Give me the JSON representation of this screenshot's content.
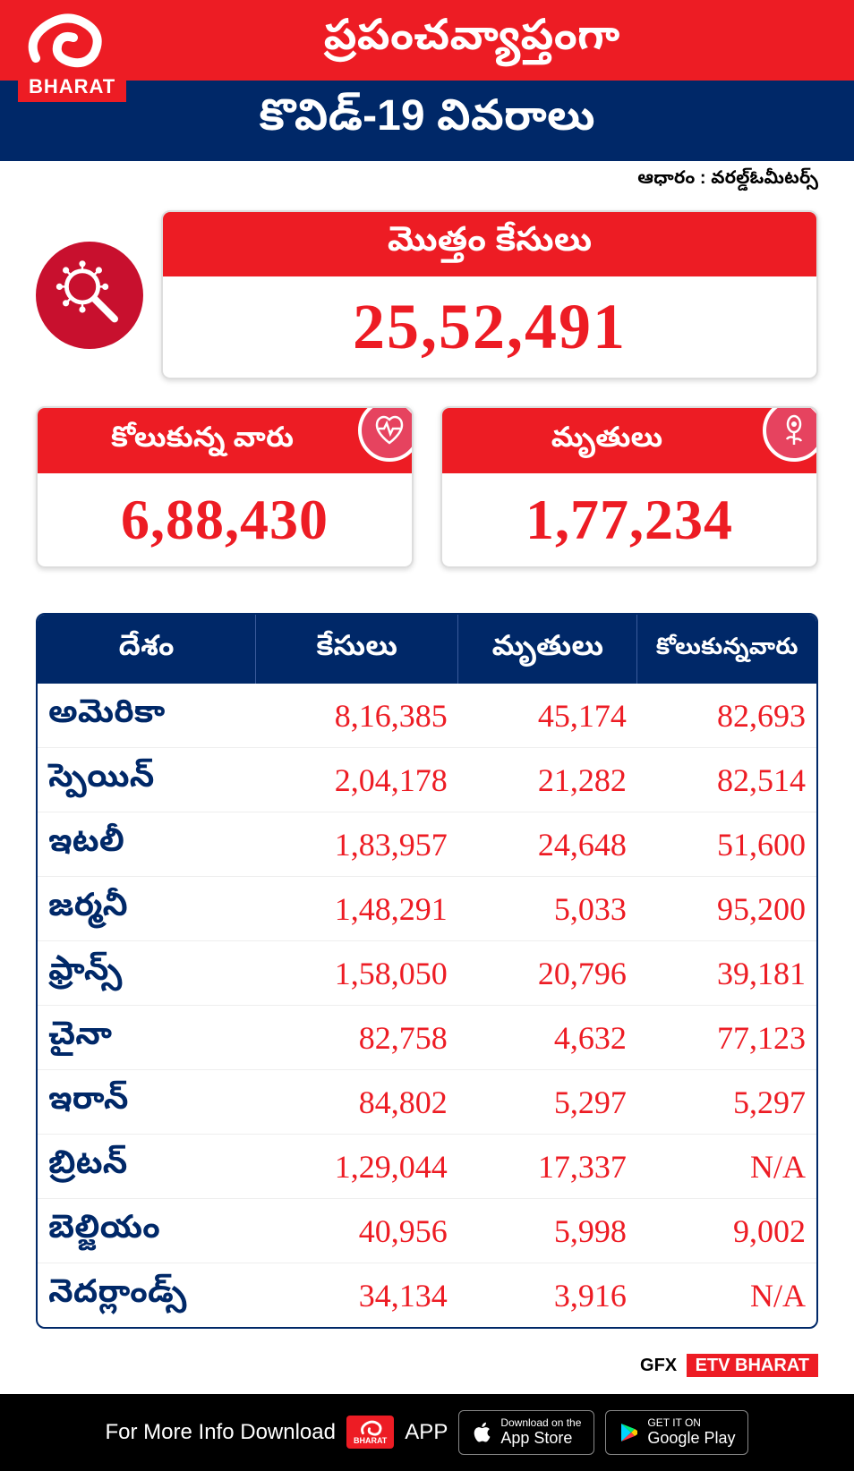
{
  "brand": {
    "logo_text": "BHARAT"
  },
  "header": {
    "title_line1": "ప్రపంచవ్యాప్తంగా",
    "title_line2": "కొవిడ్-19 వివరాలు"
  },
  "source": "ఆధారం : వరల్డ్‌ఓమీటర్స్",
  "totals": {
    "total_label": "మొత్తం కేసులు",
    "total_value": "25,52,491",
    "recovered_label": "కోలుకున్న వారు",
    "recovered_value": "6,88,430",
    "deaths_label": "మృతులు",
    "deaths_value": "1,77,234"
  },
  "table": {
    "columns": [
      "దేశం",
      "కేసులు",
      "మృతులు",
      "కోలుకున్నవారు"
    ],
    "rows": [
      [
        "అమెరికా",
        "8,16,385",
        "45,174",
        "82,693"
      ],
      [
        "స్పెయిన్",
        "2,04,178",
        "21,282",
        "82,514"
      ],
      [
        "ఇటలీ",
        "1,83,957",
        "24,648",
        "51,600"
      ],
      [
        "జర్మనీ",
        "1,48,291",
        "5,033",
        "95,200"
      ],
      [
        "ఫ్రాన్స్",
        "1,58,050",
        "20,796",
        "39,181"
      ],
      [
        "చైనా",
        "82,758",
        "4,632",
        "77,123"
      ],
      [
        "ఇరాన్",
        "84,802",
        "5,297",
        "5,297"
      ],
      [
        "బ్రిటన్",
        "1,29,044",
        "17,337",
        "N/A"
      ],
      [
        "బెల్జియం",
        "40,956",
        "5,998",
        "9,002"
      ],
      [
        "నెదర్లాండ్స్",
        "34,134",
        "3,916",
        "N/A"
      ]
    ],
    "col_widths": [
      "28%",
      "26%",
      "23%",
      "23%"
    ]
  },
  "credit": {
    "gfx": "GFX",
    "brand": "ETV BHARAT"
  },
  "footer": {
    "text_pre": "For More Info Download",
    "text_post": "APP",
    "appstore_small": "Download on the",
    "appstore_big": "App Store",
    "play_small": "GET IT ON",
    "play_big": "Google Play"
  },
  "colors": {
    "red": "#ed1c24",
    "navy": "#002868",
    "icon_red": "#c8102e",
    "pink": "#e6435f"
  }
}
